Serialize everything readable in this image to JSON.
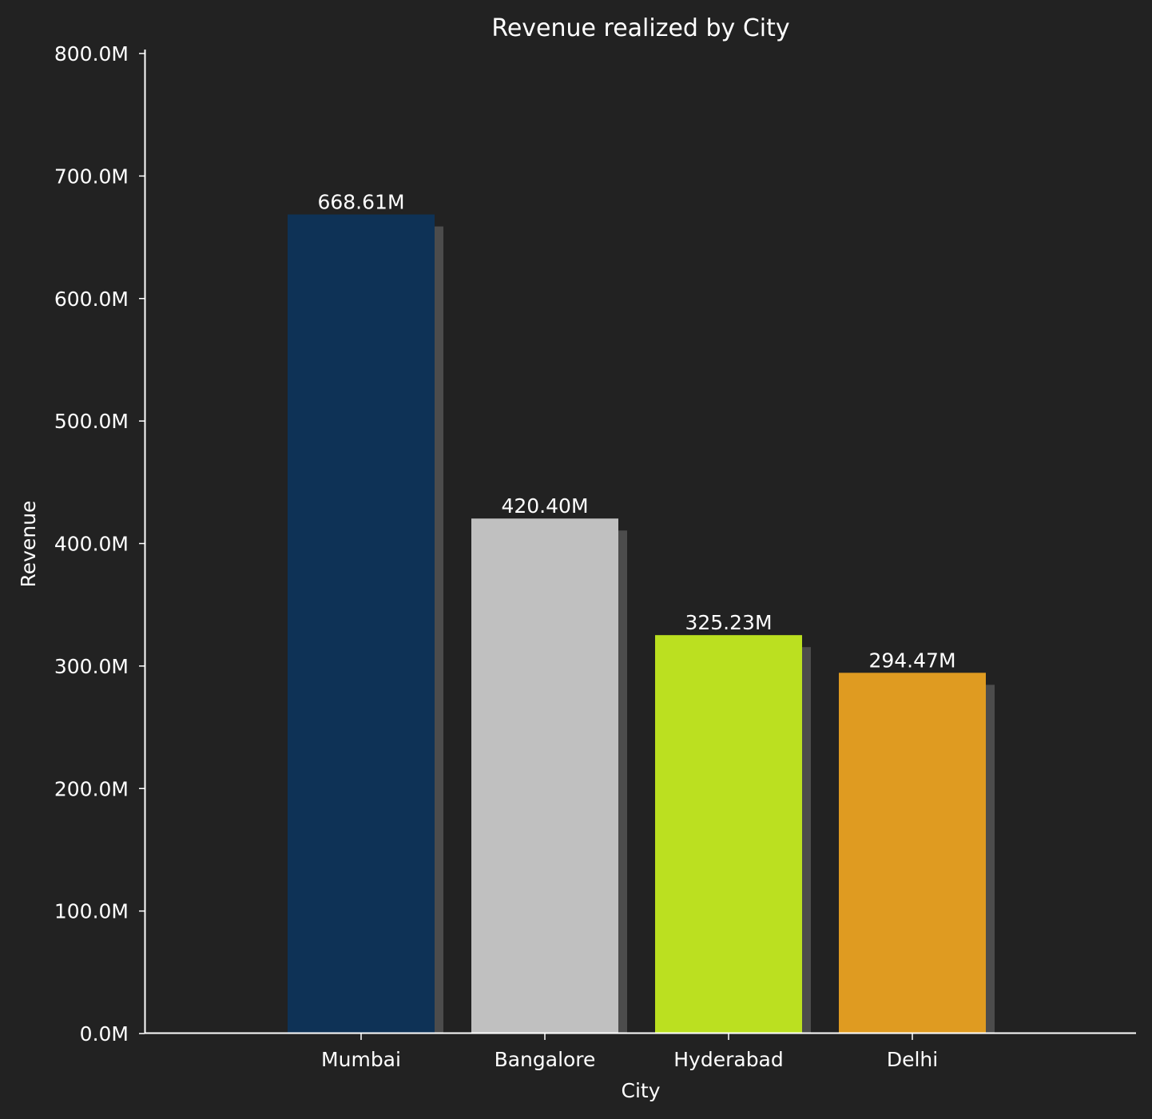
{
  "chart_data": {
    "type": "bar",
    "title": "Revenue realized by City",
    "xlabel": "City",
    "ylabel": "Revenue",
    "categories": [
      "Mumbai",
      "Bangalore",
      "Hyderabad",
      "Delhi"
    ],
    "values": [
      668.61,
      420.4,
      325.23,
      294.47
    ],
    "value_unit": "M",
    "data_labels": [
      "668.61M",
      "420.40M",
      "325.23M",
      "294.47M"
    ],
    "ylim": [
      0,
      800
    ],
    "yticks": [
      0,
      100,
      200,
      300,
      400,
      500,
      600,
      700,
      800
    ],
    "ytick_labels": [
      "0.0M",
      "100.0M",
      "200.0M",
      "300.0M",
      "400.0M",
      "500.0M",
      "600.0M",
      "700.0M",
      "800.0M"
    ],
    "bar_colors": [
      "#0e3256",
      "#c0c0c0",
      "#bbe020",
      "#df9b21"
    ],
    "shadow_color": "#4c4c4c",
    "background_color": "#222222",
    "grid": false,
    "legend": "none"
  }
}
